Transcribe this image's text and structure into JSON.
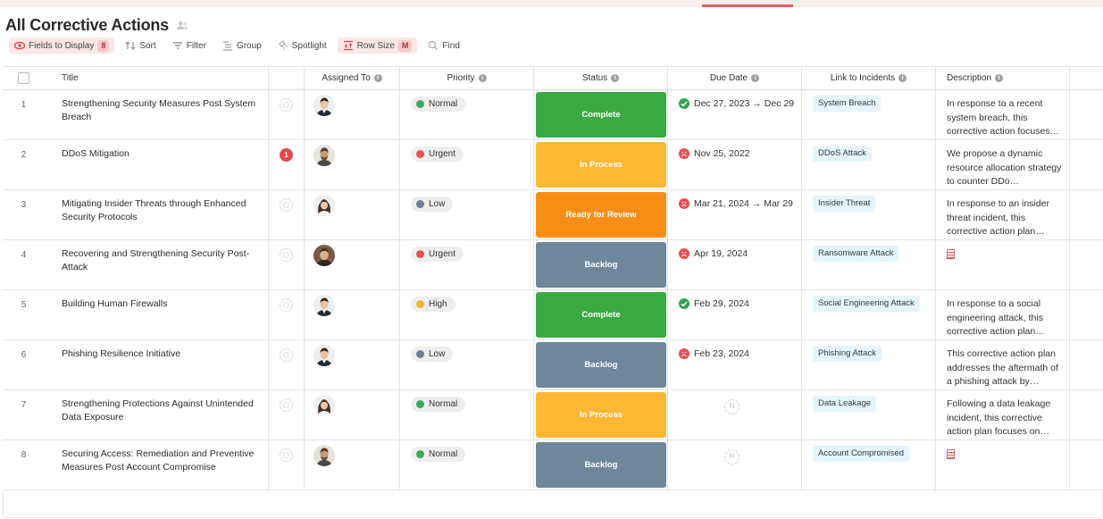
{
  "header": {
    "title": "All Corrective Actions"
  },
  "toolbar": {
    "fields_label": "Fields to Display",
    "fields_count": "8",
    "sort_label": "Sort",
    "filter_label": "Filter",
    "group_label": "Group",
    "spotlight_label": "Spotlight",
    "rowsize_label": "Row Size",
    "rowsize_value": "M",
    "find_label": "Find"
  },
  "columns": {
    "title": "Title",
    "assigned": "Assigned To",
    "priority": "Priority",
    "status": "Status",
    "due": "Due Date",
    "link": "Link to Incidents",
    "description": "Description"
  },
  "colors": {
    "Normal": "#3aab5c",
    "Urgent": "#ea4f4f",
    "Low": "#6b7f95",
    "High": "#f3b52b",
    "Complete": "#3aab42",
    "In Process": "#fdb733",
    "Ready for Review": "#f98e17",
    "Backlog": "#6e879c"
  },
  "rows": [
    {
      "num": "1",
      "title": "Strengthening Security Measures Post System Breach",
      "comments": "",
      "avatar": "man-1",
      "priority": "Normal",
      "status": "Complete",
      "due_state": "ok",
      "due": "Dec 27, 2023 → Dec 29",
      "link": "System Breach",
      "description": "In response to a recent system breach, this corrective action focuses…",
      "desc_doc": false
    },
    {
      "num": "2",
      "title": "DDoS Mitigation",
      "comments": "1",
      "avatar": "man-2",
      "priority": "Urgent",
      "status": "In Process",
      "due_state": "bad",
      "due": "Nov 25, 2022",
      "link": "DDoS Attack",
      "description": "We propose a dynamic resource allocation strategy to counter DDo…",
      "desc_doc": false
    },
    {
      "num": "3",
      "title": "Mitigating Insider Threats through Enhanced Security Protocols",
      "comments": "",
      "avatar": "woman-1",
      "priority": "Low",
      "status": "Ready for Review",
      "due_state": "bad",
      "due": "Mar 21, 2024 → Mar 29",
      "link": "Insider Threat",
      "description": "In response to an insider threat incident, this corrective action plan…",
      "desc_doc": false
    },
    {
      "num": "4",
      "title": "Recovering and Strengthening Security Post-Attack",
      "comments": "",
      "avatar": "man-3",
      "priority": "Urgent",
      "status": "Backlog",
      "due_state": "bad",
      "due": "Apr 19, 2024",
      "link": "Ransomware Attack",
      "description": "",
      "desc_doc": true
    },
    {
      "num": "5",
      "title": "Building Human Firewalls",
      "comments": "",
      "avatar": "man-1",
      "priority": "High",
      "status": "Complete",
      "due_state": "ok",
      "due": "Feb 29, 2024",
      "link": "Social Engineering Attack",
      "description": "In response to a social engineering attack, this corrective action plan…",
      "desc_doc": false
    },
    {
      "num": "6",
      "title": "Phishing Resilience Initiative",
      "comments": "",
      "avatar": "man-1",
      "priority": "Low",
      "status": "Backlog",
      "due_state": "bad",
      "due": "Feb 23, 2024",
      "link": "Phishing Attack",
      "description": "This corrective action plan addresses the aftermath of a phishing attack by…",
      "desc_doc": false
    },
    {
      "num": "7",
      "title": "Strengthening Protections Against Unintended Data Exposure",
      "comments": "",
      "avatar": "woman-1",
      "priority": "Normal",
      "status": "In Process",
      "due_state": "none",
      "due": "",
      "link": "Data Leakage",
      "description": "Following a data leakage incident, this corrective action plan focuses on…",
      "desc_doc": false
    },
    {
      "num": "8",
      "title": "Securing Access: Remediation and Preventive Measures Post Account Compromise",
      "comments": "",
      "avatar": "man-2",
      "priority": "Normal",
      "status": "Backlog",
      "due_state": "none",
      "due": "",
      "link": "Account Compromised",
      "description": "",
      "desc_doc": true
    }
  ]
}
